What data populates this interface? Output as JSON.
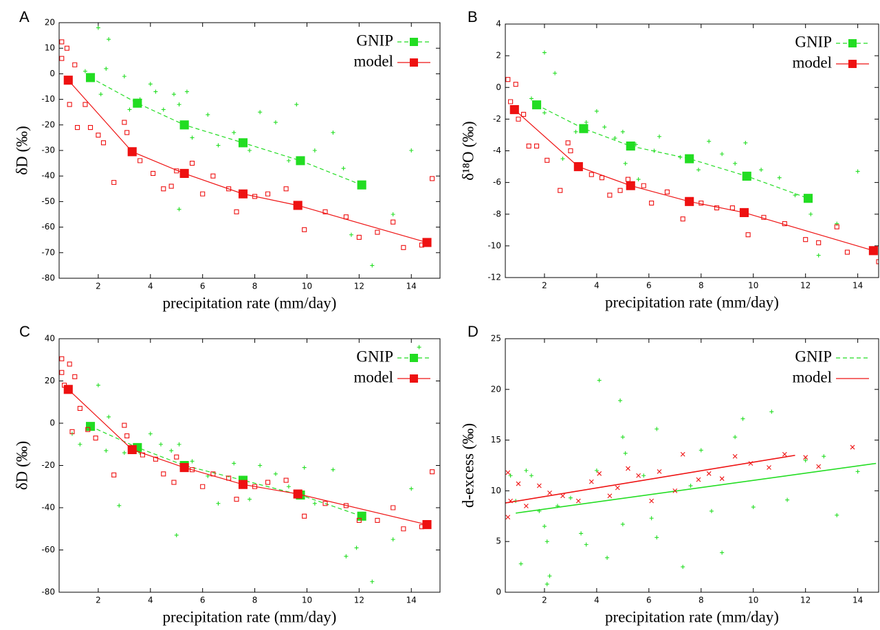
{
  "chart_data": [
    {
      "type": "scatter",
      "panel_label": "A",
      "xlabel": "precipitation rate (mm/day)",
      "ylabel": "δD (‰)",
      "xlim": [
        0.5,
        15.1
      ],
      "ylim": [
        -80,
        20
      ],
      "xticks": [
        2,
        4,
        6,
        8,
        10,
        12,
        14
      ],
      "yticks": [
        -80,
        -70,
        -60,
        -50,
        -40,
        -30,
        -20,
        -10,
        0,
        10,
        20
      ],
      "legend": "upper right",
      "series": [
        {
          "name": "GNIP",
          "color": "#22dd22",
          "marker": "plus",
          "linestyle": "dashed",
          "x": [
            2,
            2.4,
            1.5,
            2.3,
            2.1,
            3,
            3.2,
            3.6,
            4,
            4.2,
            4.5,
            4.9,
            5.1,
            5.4,
            5.6,
            5.1,
            6.2,
            6.6,
            7.2,
            7.8,
            8.2,
            8.8,
            9.3,
            9.6,
            10.3,
            11,
            11.4,
            11.7,
            12.5,
            13.3,
            14
          ],
          "values": [
            18,
            13.5,
            1,
            2,
            -8,
            -1,
            -14,
            -10,
            -4,
            -7,
            -14,
            -8,
            -12,
            -7,
            -25,
            -53,
            -16,
            -28,
            -23,
            -30,
            -15,
            -19,
            -34,
            -12,
            -30,
            -23,
            -37,
            -63,
            -75,
            -55,
            -30
          ],
          "mean_x": [
            1.7,
            3.5,
            5.3,
            7.55,
            9.75,
            12.1
          ],
          "mean_values": [
            -1.5,
            -11.5,
            -20,
            -27,
            -34,
            -43.5
          ]
        },
        {
          "name": "model",
          "color": "#ee1111",
          "marker": "square",
          "linestyle": "solid",
          "x": [
            0.6,
            0.6,
            0.8,
            0.9,
            1.1,
            1.2,
            1.5,
            1.7,
            2,
            2.2,
            2.6,
            3,
            3.1,
            3.6,
            4.1,
            4.5,
            4.8,
            5,
            5.6,
            6,
            6.4,
            7,
            7.3,
            8,
            8.5,
            9.2,
            9.9,
            10.7,
            11.5,
            12,
            12.7,
            13.3,
            13.7,
            14.4,
            14.8
          ],
          "values": [
            12.5,
            6,
            10,
            -12,
            3.5,
            -21,
            -12,
            -21,
            -24,
            -27,
            -42.5,
            -19,
            -23,
            -34,
            -39,
            -45,
            -44,
            -38,
            -35,
            -47,
            -40,
            -45,
            -54,
            -48,
            -47,
            -45,
            -61,
            -54,
            -56,
            -64,
            -62,
            -58,
            -68,
            -67,
            -41
          ],
          "mean_x": [
            0.85,
            3.3,
            5.3,
            7.55,
            9.65,
            14.6
          ],
          "mean_values": [
            -2.5,
            -30.5,
            -39,
            -47,
            -51.5,
            -66
          ]
        }
      ]
    },
    {
      "type": "scatter",
      "panel_label": "B",
      "xlabel": "precipitation rate (mm/day)",
      "ylabel": "δ¹⁸O (‰)",
      "xlim": [
        0.5,
        14.8
      ],
      "ylim": [
        -12,
        4
      ],
      "xticks": [
        2,
        4,
        6,
        8,
        10,
        12,
        14
      ],
      "yticks": [
        -12,
        -10,
        -8,
        -6,
        -4,
        -2,
        0,
        2,
        4
      ],
      "legend": "upper right",
      "series": [
        {
          "name": "GNIP",
          "color": "#22dd22",
          "marker": "plus",
          "linestyle": "dashed",
          "x": [
            2,
            2.4,
            1.5,
            2,
            2.7,
            3.2,
            3.6,
            4,
            4.3,
            4.7,
            5,
            5.1,
            5.5,
            5.6,
            6.2,
            6.4,
            7.2,
            7.9,
            8.3,
            8.8,
            9.3,
            9.7,
            10.3,
            11,
            11.6,
            12.2,
            12.5,
            13.2,
            14
          ],
          "values": [
            2.2,
            0.9,
            -0.7,
            -1.6,
            -4.5,
            -2.8,
            -2.2,
            -1.5,
            -2.5,
            -3.2,
            -2.8,
            -4.8,
            -3.6,
            -5.8,
            -4,
            -3.1,
            -4.4,
            -5.2,
            -3.4,
            -4.2,
            -4.8,
            -3.5,
            -5.2,
            -5.7,
            -6.8,
            -8,
            -10.6,
            -8.6,
            -5.3
          ],
          "mean_x": [
            1.7,
            3.5,
            5.3,
            7.55,
            9.75,
            12.1
          ],
          "mean_values": [
            -1.1,
            -2.6,
            -3.7,
            -4.5,
            -5.6,
            -7
          ]
        },
        {
          "name": "model",
          "color": "#ee1111",
          "marker": "square",
          "linestyle": "solid",
          "x": [
            0.6,
            0.7,
            0.9,
            1,
            1.2,
            1.4,
            1.7,
            2.1,
            2.6,
            2.9,
            3,
            3.8,
            4.2,
            4.5,
            4.9,
            5.2,
            5.8,
            6.1,
            6.7,
            7.3,
            8,
            8.6,
            9.2,
            9.8,
            10.4,
            11.2,
            12,
            12.5,
            13.2,
            13.6,
            14.6,
            14.8
          ],
          "values": [
            0.5,
            -0.9,
            0.2,
            -2,
            -1.7,
            -3.7,
            -3.7,
            -4.6,
            -6.5,
            -3.5,
            -4,
            -5.5,
            -5.7,
            -6.8,
            -6.5,
            -5.8,
            -6.2,
            -7.3,
            -6.6,
            -8.3,
            -7.3,
            -7.6,
            -7.6,
            -9.3,
            -8.2,
            -8.6,
            -9.6,
            -9.8,
            -8.8,
            -10.4,
            -10.3,
            -11
          ],
          "mean_x": [
            0.85,
            3.3,
            5.3,
            7.55,
            9.65,
            14.6
          ],
          "mean_values": [
            -1.4,
            -5,
            -6.2,
            -7.2,
            -7.9,
            -10.3
          ]
        }
      ]
    },
    {
      "type": "scatter",
      "panel_label": "C",
      "xlabel": "precipitation rate (mm/day)",
      "ylabel": "δD (‰)",
      "xlim": [
        0.5,
        15.1
      ],
      "ylim": [
        -80,
        40
      ],
      "xticks": [
        2,
        4,
        6,
        8,
        10,
        12,
        14
      ],
      "yticks": [
        -80,
        -60,
        -40,
        -20,
        0,
        20,
        40
      ],
      "legend": "upper right",
      "series": [
        {
          "name": "GNIP",
          "color": "#22dd22",
          "marker": "plus",
          "linestyle": "dashed",
          "x": [
            1,
            1.3,
            2,
            2.4,
            2.3,
            2.8,
            3,
            3.6,
            4,
            4.4,
            4.8,
            5,
            5.1,
            5.6,
            6.2,
            6.6,
            7.2,
            7.8,
            8.2,
            8.8,
            9.3,
            9.9,
            10.3,
            11,
            11.5,
            11.9,
            12.5,
            13.3,
            14,
            14.3
          ],
          "values": [
            -5,
            -10,
            18,
            3,
            -13,
            -39,
            -14,
            -14,
            -5,
            -10,
            -13,
            -53,
            -10,
            -18,
            -25,
            -38,
            -19,
            -36,
            -20,
            -24,
            -30,
            -21,
            -38,
            -22,
            -63,
            -59,
            -75,
            -55,
            -31,
            36
          ],
          "mean_x": [
            1.7,
            3.5,
            5.3,
            7.55,
            9.75,
            12.1
          ],
          "mean_values": [
            -1.5,
            -11.5,
            -20,
            -27,
            -34,
            -44
          ]
        },
        {
          "name": "model",
          "color": "#ee1111",
          "marker": "square",
          "linestyle": "solid",
          "x": [
            0.6,
            0.6,
            0.7,
            0.9,
            1.1,
            1,
            1.3,
            1.6,
            1.9,
            2.6,
            3,
            3.1,
            3.7,
            4.2,
            4.5,
            4.9,
            5,
            5.6,
            6,
            6.4,
            7,
            7.3,
            8,
            8.5,
            9.2,
            9.9,
            10.7,
            11.5,
            12,
            12.7,
            13.3,
            13.7,
            14.4,
            14.8
          ],
          "values": [
            30.5,
            24,
            18,
            28,
            22,
            -4,
            7,
            -3,
            -7,
            -24.5,
            -1,
            -6,
            -15,
            -17,
            -24,
            -28,
            -16,
            -22,
            -30,
            -24,
            -26,
            -36,
            -30,
            -28,
            -27,
            -44,
            -38,
            -39,
            -46,
            -46,
            -40,
            -50,
            -49,
            -23
          ],
          "mean_x": [
            0.85,
            3.3,
            5.3,
            7.55,
            9.65,
            14.6
          ],
          "mean_values": [
            16,
            -12.5,
            -21,
            -29,
            -33.5,
            -48
          ]
        }
      ]
    },
    {
      "type": "scatter",
      "panel_label": "D",
      "xlabel": "precipitation rate (mm/day)",
      "ylabel": "d-excess (‰)",
      "xlim": [
        0.5,
        14.8
      ],
      "ylim": [
        0,
        25
      ],
      "xticks": [
        2,
        4,
        6,
        8,
        10,
        12,
        14
      ],
      "yticks": [
        0,
        5,
        10,
        15,
        20,
        25
      ],
      "legend": "upper right",
      "series": [
        {
          "name": "GNIP",
          "color": "#22dd22",
          "marker": "plus",
          "linestyle": "dashed",
          "x": [
            0.7,
            1.3,
            1.5,
            0.9,
            1.1,
            1.8,
            2,
            2.1,
            2.2,
            2.1,
            2.5,
            3,
            3.4,
            3.6,
            4.1,
            4,
            4.4,
            4.9,
            5,
            5.1,
            5,
            5.8,
            6.1,
            6.3,
            6.3,
            7.3,
            7.6,
            8,
            8.4,
            8.8,
            9.3,
            9.6,
            10,
            10.7,
            11.3,
            12,
            12.7,
            13.2,
            14
          ],
          "values": [
            11.5,
            12,
            11.5,
            9,
            2.8,
            8,
            6.5,
            0.8,
            1.6,
            5,
            8.5,
            9.3,
            5.8,
            4.7,
            20.9,
            12,
            3.4,
            18.9,
            15.3,
            13.7,
            6.7,
            11.5,
            7.3,
            16.1,
            5.4,
            2.5,
            10.5,
            14,
            8,
            3.9,
            15.3,
            17.1,
            8.4,
            17.8,
            9.1,
            13,
            13.4,
            7.6,
            11.9
          ],
          "fit_x": [
            0.9,
            14.7
          ],
          "fit_values": [
            7.8,
            12.7
          ]
        },
        {
          "name": "model",
          "color": "#ee1111",
          "marker": "cross",
          "linestyle": "solid",
          "x": [
            0.6,
            0.6,
            0.7,
            1,
            1.3,
            1.8,
            2.2,
            2.7,
            3.3,
            3.8,
            4.1,
            4.5,
            4.8,
            5.2,
            5.6,
            6.1,
            6.4,
            7,
            7.3,
            7.9,
            8.3,
            8.8,
            9.3,
            9.9,
            10.6,
            11.2,
            12,
            12.5,
            13.8
          ],
          "values": [
            11.8,
            7.4,
            9,
            10.7,
            8.5,
            10.5,
            9.8,
            9.5,
            9,
            10.9,
            11.7,
            9.5,
            10.3,
            12.2,
            11.5,
            9,
            11.9,
            10,
            13.6,
            11.1,
            11.7,
            11.2,
            13.4,
            12.7,
            12.3,
            13.6,
            13.3,
            12.4,
            14.3
          ],
          "fit_x": [
            0.5,
            11.6
          ],
          "fit_values": [
            8.8,
            13.5
          ]
        }
      ]
    }
  ]
}
